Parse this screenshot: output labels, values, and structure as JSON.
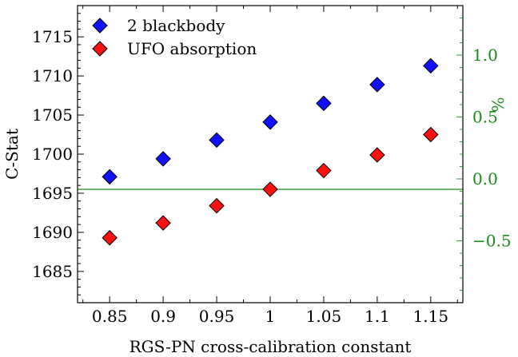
{
  "chart_data": {
    "type": "scatter",
    "title": "",
    "xlabel": "RGS-PN cross-calibration constant",
    "ylabel": "C-Stat",
    "y2label": "%",
    "x_ticks": [
      "0.85",
      "0.9",
      "0.95",
      "1",
      "1.05",
      "1.1",
      "1.15"
    ],
    "xlim": [
      0.82,
      1.18
    ],
    "ylim": [
      1681,
      1719
    ],
    "y_ticks": [
      1685,
      1690,
      1695,
      1700,
      1705,
      1710,
      1715
    ],
    "y2lim": [
      -1.0,
      1.4
    ],
    "y2_ticks": [
      "−0.5",
      "0.0",
      "0.5",
      "1.0"
    ],
    "y2_tick_values": [
      -0.5,
      0.0,
      0.5,
      1.0
    ],
    "reference_line": {
      "y": 1695.5,
      "color": "#2a9d2a"
    },
    "legend_placement": "top-left",
    "grid": false,
    "series": [
      {
        "name": "2 blackbody",
        "color": "#1010ff",
        "marker": "diamond",
        "x": [
          0.85,
          0.9,
          0.95,
          1.0,
          1.05,
          1.1,
          1.15
        ],
        "y": [
          1697.1,
          1699.4,
          1701.8,
          1704.1,
          1706.5,
          1708.9,
          1711.3
        ]
      },
      {
        "name": "UFO absorption",
        "color": "#ff1010",
        "marker": "diamond",
        "x": [
          0.85,
          0.9,
          0.95,
          1.0,
          1.05,
          1.1,
          1.15
        ],
        "y": [
          1689.3,
          1691.2,
          1693.4,
          1695.5,
          1697.9,
          1699.9,
          1702.5
        ]
      }
    ]
  }
}
